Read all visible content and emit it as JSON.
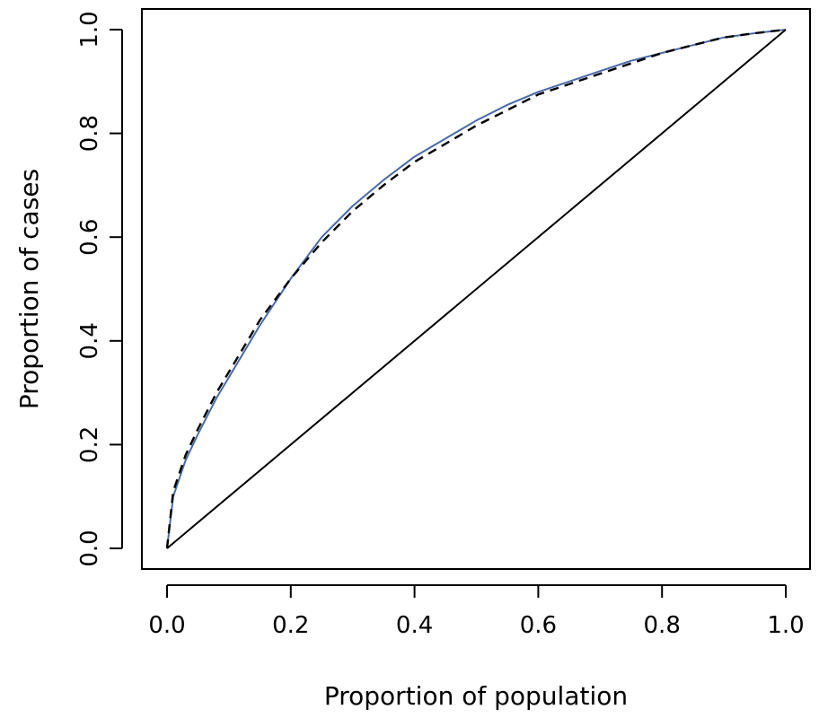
{
  "chart_data": {
    "type": "line",
    "title": "",
    "xlabel": "Proportion of population",
    "ylabel": "Proportion of cases",
    "xlim": [
      0,
      1
    ],
    "ylim": [
      0,
      1
    ],
    "x_ticks": [
      "0.0",
      "0.2",
      "0.4",
      "0.6",
      "0.8",
      "1.0"
    ],
    "y_ticks": [
      "0.0",
      "0.2",
      "0.4",
      "0.6",
      "0.8",
      "1.0"
    ],
    "grid": false,
    "legend": "none",
    "series": [
      {
        "style": "solid",
        "color": "#4a6aa8",
        "x": [
          0,
          0.01,
          0.03,
          0.05,
          0.08,
          0.1,
          0.15,
          0.2,
          0.25,
          0.3,
          0.35,
          0.4,
          0.45,
          0.5,
          0.55,
          0.6,
          0.65,
          0.7,
          0.75,
          0.8,
          0.85,
          0.9,
          0.95,
          1.0
        ],
        "y": [
          0,
          0.1,
          0.17,
          0.22,
          0.29,
          0.33,
          0.43,
          0.52,
          0.6,
          0.66,
          0.71,
          0.755,
          0.79,
          0.825,
          0.855,
          0.88,
          0.9,
          0.92,
          0.94,
          0.955,
          0.97,
          0.985,
          0.993,
          1.0
        ]
      },
      {
        "style": "dashed",
        "color": "#000000",
        "x": [
          0,
          0.01,
          0.03,
          0.05,
          0.08,
          0.1,
          0.15,
          0.2,
          0.25,
          0.3,
          0.35,
          0.4,
          0.45,
          0.5,
          0.55,
          0.6,
          0.65,
          0.7,
          0.75,
          0.8,
          0.85,
          0.9,
          0.95,
          1.0
        ],
        "y": [
          0,
          0.11,
          0.18,
          0.23,
          0.3,
          0.34,
          0.44,
          0.52,
          0.59,
          0.65,
          0.7,
          0.745,
          0.78,
          0.815,
          0.845,
          0.875,
          0.895,
          0.915,
          0.935,
          0.955,
          0.97,
          0.985,
          0.993,
          1.0
        ]
      },
      {
        "style": "solid",
        "color": "#000000",
        "x": [
          0,
          1
        ],
        "y": [
          0,
          1
        ]
      }
    ]
  }
}
